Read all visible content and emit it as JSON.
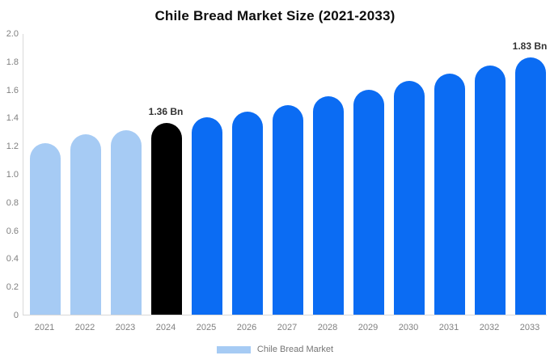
{
  "chart_data": {
    "type": "bar",
    "title": "Chile Bread Market Size (2021-2033)",
    "categories": [
      "2021",
      "2022",
      "2023",
      "2024",
      "2025",
      "2026",
      "2027",
      "2028",
      "2029",
      "2030",
      "2031",
      "2032",
      "2033"
    ],
    "values": [
      1.22,
      1.28,
      1.31,
      1.36,
      1.4,
      1.44,
      1.49,
      1.55,
      1.6,
      1.66,
      1.71,
      1.77,
      1.83
    ],
    "bar_labels": [
      "",
      "",
      "",
      "1.36 Bn",
      "",
      "",
      "",
      "",
      "",
      "",
      "",
      "",
      "1.83 Bn"
    ],
    "bar_colors": [
      "#a6cbf4",
      "#a6cbf4",
      "#a6cbf4",
      "#000000",
      "#0b6cf3",
      "#0b6cf3",
      "#0b6cf3",
      "#0b6cf3",
      "#0b6cf3",
      "#0b6cf3",
      "#0b6cf3",
      "#0b6cf3",
      "#0b6cf3"
    ],
    "xlabel": "",
    "ylabel": "",
    "ylim": [
      0,
      2.0
    ],
    "yticks": [
      0,
      0.2,
      0.4,
      0.6,
      0.8,
      1.0,
      1.2,
      1.4,
      1.6,
      1.8,
      2.0
    ],
    "ytick_labels": [
      "0",
      "0.2",
      "0.4",
      "0.6",
      "0.8",
      "1.0",
      "1.2",
      "1.4",
      "1.6",
      "1.8",
      "2.0"
    ],
    "grid": false,
    "legend_position": "bottom",
    "legend": {
      "label": "Chile Bread Market",
      "swatch_color": "#a6cbf4"
    },
    "colors": {
      "historical_bar": "#a6cbf4",
      "highlight_bar": "#000000",
      "forecast_bar": "#0b6cf3",
      "axis_line": "#d9d9d9",
      "tick_text": "#808080",
      "annotation_text": "#333333",
      "title_text": "#0d0d0d",
      "background": "#ffffff"
    }
  }
}
